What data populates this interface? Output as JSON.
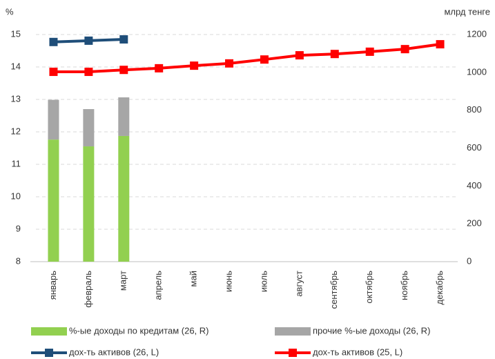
{
  "chart_data": {
    "type": "bar",
    "y_label": "%",
    "y2_label": "млрд тенге",
    "categories": [
      "январь",
      "февраль",
      "март",
      "апрель",
      "май",
      "июнь",
      "июль",
      "август",
      "сентябрь",
      "октябрь",
      "ноябрь",
      "декабрь"
    ],
    "ylim": [
      8,
      15
    ],
    "yticks": [
      8,
      9,
      10,
      11,
      12,
      13,
      14,
      15
    ],
    "y2lim": [
      0,
      1200
    ],
    "y2ticks": [
      0,
      200,
      400,
      600,
      800,
      1000,
      1200
    ],
    "grid": true,
    "series": [
      {
        "name": "%-ые доходы по кредитам (26, R)",
        "type": "bar",
        "axis": "y2",
        "color": "#92d050",
        "values": [
          645,
          609,
          664,
          null,
          null,
          null,
          null,
          null,
          null,
          null,
          null,
          null
        ]
      },
      {
        "name": "прочие %-ые доходы (26, R)",
        "type": "bar",
        "axis": "y2",
        "color": "#a6a6a6",
        "values": [
          210,
          197,
          204,
          null,
          null,
          null,
          null,
          null,
          null,
          null,
          null,
          null
        ]
      },
      {
        "name": "дох-ть активов (26, L)",
        "type": "line",
        "color": "#1f4e79",
        "values": [
          14.77,
          14.81,
          14.85,
          null,
          null,
          null,
          null,
          null,
          null,
          null,
          null,
          null
        ]
      },
      {
        "name": "дох-ть активов (25, L)",
        "type": "line",
        "color": "#ff0000",
        "values": [
          13.85,
          13.85,
          13.91,
          13.96,
          14.04,
          14.11,
          14.23,
          14.36,
          14.4,
          14.47,
          14.55,
          14.7
        ]
      }
    ]
  }
}
